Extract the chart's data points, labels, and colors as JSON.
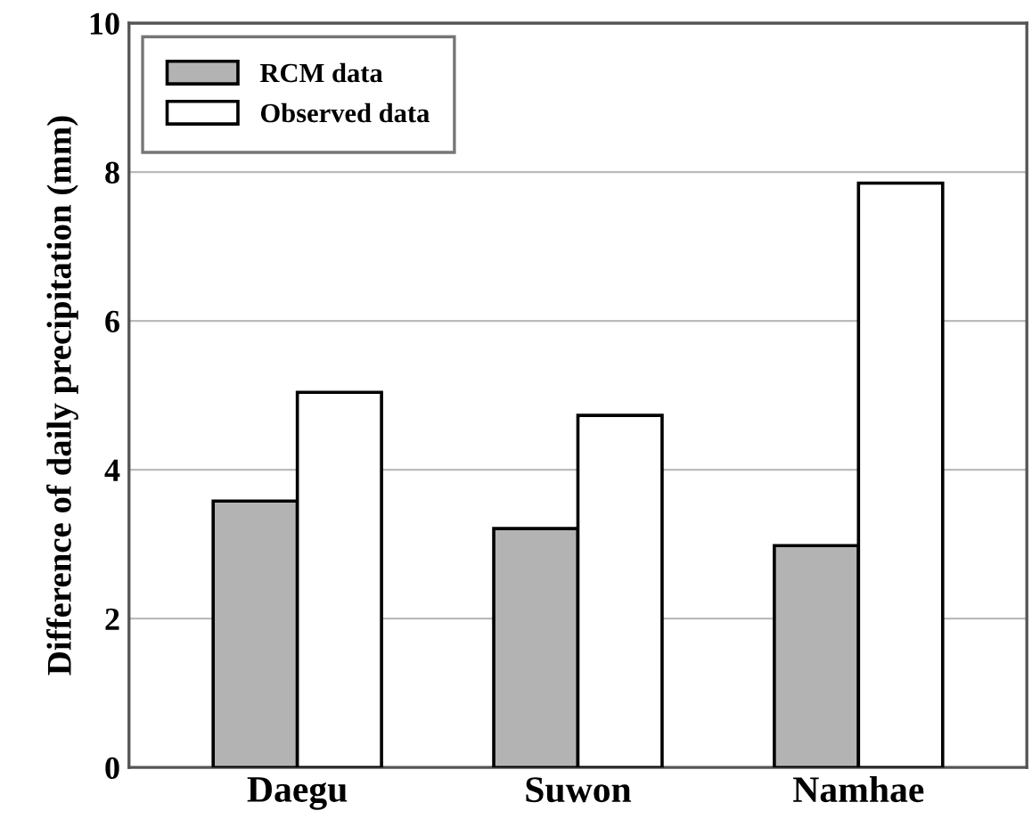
{
  "chart_data": {
    "type": "bar",
    "ylabel": "Difference of daily precipitation (mm)",
    "categories": [
      "Daegu",
      "Suwon",
      "Namhae"
    ],
    "series": [
      {
        "name": "RCM data",
        "color": "#b3b3b3",
        "values": [
          3.58,
          3.21,
          2.98
        ]
      },
      {
        "name": "Observed data",
        "color": "#ffffff",
        "values": [
          5.04,
          4.73,
          7.85
        ]
      }
    ],
    "ylim": [
      0,
      10
    ],
    "yticks": [
      0,
      2,
      4,
      6,
      8,
      10
    ],
    "grid": "y",
    "legend": "top left"
  }
}
